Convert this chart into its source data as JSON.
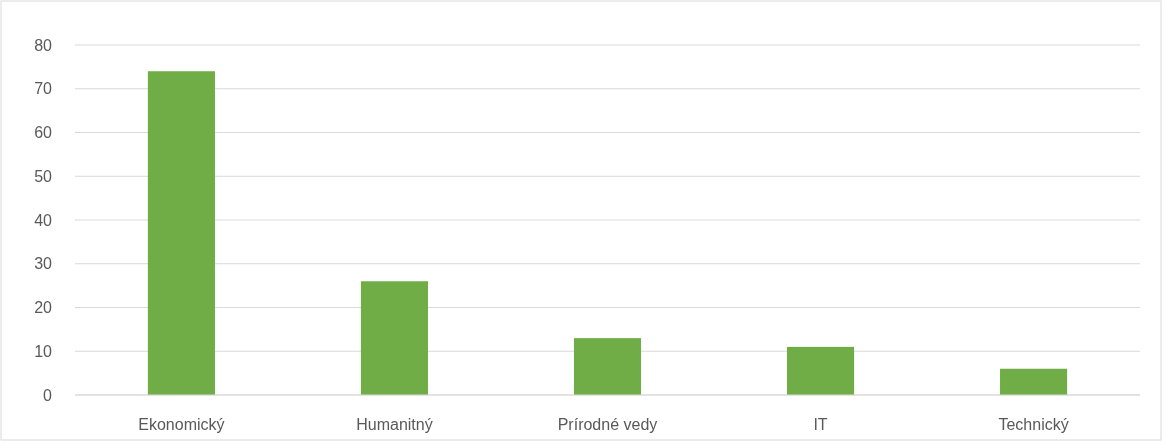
{
  "chart_data": {
    "type": "bar",
    "categories": [
      "Ekonomický",
      "Humanitný",
      "Prírodné vedy",
      "IT",
      "Technický"
    ],
    "values": [
      74,
      26,
      13,
      11,
      6
    ],
    "color": "#70ad47",
    "ylim": [
      0,
      80
    ],
    "yticks": [
      0,
      10,
      20,
      30,
      40,
      50,
      60,
      70,
      80
    ],
    "grid": "y"
  }
}
